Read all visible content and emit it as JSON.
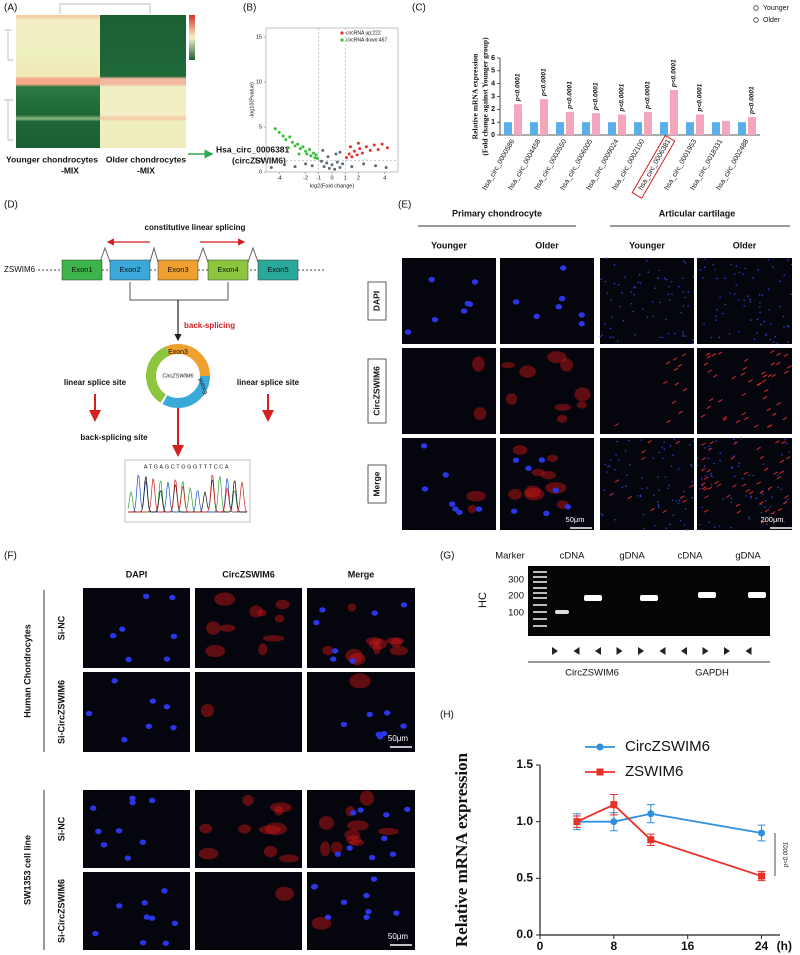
{
  "figure": {
    "A": {
      "label": "(A)",
      "column_labels": [
        [
          "Younger chondrocytes",
          "-MIX"
        ],
        [
          "Older chondrocytes",
          "-MIX"
        ]
      ],
      "annotation": [
        "Hsa_circ_0006381",
        "(circZSWIM6)"
      ]
    },
    "D": {
      "label": "(D)",
      "gene": "ZSWIM6",
      "exons": [
        "Exon1",
        "Exon2",
        "Exon3",
        "Exon4",
        "Exon5"
      ],
      "linear": "constitutive linear splicing",
      "back": "back-splicing",
      "circle": "CircZSWIM6",
      "circle_exons": [
        "Exon3",
        "Exon4"
      ],
      "left_site": "linear splice site",
      "right_site": "linear splice site",
      "bs_site": "back-splicing site",
      "sequence": "ATGAGCTGGGTTTCCA"
    },
    "E": {
      "label": "(E)",
      "groups": [
        "Primary chondrocyte",
        "Articular cartilage"
      ],
      "columns": [
        "Younger",
        "Older",
        "Younger",
        "Older"
      ],
      "rows": [
        "DAPI",
        "CircZSWIM6",
        "Merge"
      ],
      "scales": [
        "50μm",
        "200μm"
      ]
    },
    "F": {
      "label": "(F)",
      "columns": [
        "DAPI",
        "CircZSWIM6",
        "Merge"
      ],
      "groups": [
        "Human Chondrocytes",
        "SW1353 cell line"
      ],
      "rows": [
        "Si-NC",
        "Si-CircZSWIM6",
        "Si-NC",
        "Si-CircZSWIM6"
      ],
      "scales": [
        "50μm",
        "50μm"
      ]
    },
    "G": {
      "label": "(G)",
      "headers": [
        "Marker",
        "cDNA",
        "gDNA",
        "cDNA",
        "gDNA"
      ],
      "sizes": [
        "300",
        "200",
        "100"
      ],
      "sample": "HC",
      "genes": [
        "CircZSWIM6",
        "GAPDH"
      ]
    }
  },
  "chart_data": [
    {
      "type": "scatter",
      "panel": "(B)",
      "xlabel": "log2(Fold change)",
      "ylabel": "-log10(Pvalue)",
      "xlim": [
        -5,
        5
      ],
      "ylim": [
        0,
        16
      ],
      "xticks": [
        -4,
        -2,
        -1,
        0,
        1,
        2,
        4
      ],
      "yticks": [
        0,
        1.3,
        5,
        10,
        15
      ],
      "cutoffs": {
        "x": [
          -1,
          1
        ],
        "y": [
          1.3
        ]
      },
      "series": [
        {
          "name": "circRNA up:222",
          "color": "#e8302a",
          "x": [
            1.1,
            1.3,
            1.5,
            1.7,
            1.9,
            2.1,
            2.3,
            2.6,
            2.9,
            3.2,
            3.5,
            3.8,
            4.2,
            1.4,
            2.0
          ],
          "values": [
            1.6,
            2.0,
            1.7,
            2.3,
            1.9,
            2.6,
            2.1,
            2.8,
            2.4,
            3.0,
            2.5,
            3.1,
            2.7,
            2.8,
            3.2
          ]
        },
        {
          "name": "circRNA down:467",
          "color": "#3bbf3b",
          "x": [
            -4.3,
            -4.0,
            -3.7,
            -3.5,
            -3.2,
            -3.0,
            -2.8,
            -2.6,
            -2.4,
            -2.2,
            -2.0,
            -1.9,
            -1.7,
            -1.6,
            -1.4,
            -1.3,
            -1.2,
            -1.1,
            -2.5,
            -3.3
          ],
          "values": [
            4.8,
            4.4,
            4.0,
            3.6,
            3.9,
            3.3,
            2.9,
            3.1,
            2.6,
            2.8,
            2.3,
            2.0,
            2.5,
            1.8,
            2.1,
            1.6,
            1.9,
            1.5,
            2.0,
            2.7
          ]
        },
        {
          "color": "#5f6b78",
          "x": [
            -4.6,
            -3.6,
            -2.8,
            -2.0,
            -1.5,
            -0.8,
            -0.6,
            -0.4,
            -0.2,
            0,
            0.2,
            0.4,
            0.6,
            0.8,
            1.5,
            2.4,
            3.3,
            4.1,
            -0.3,
            0.3,
            -0.7,
            0.6
          ],
          "values": [
            0.5,
            0.8,
            0.6,
            0.9,
            0.7,
            1.2,
            0.6,
            1.0,
            0.4,
            0.8,
            0.3,
            1.1,
            0.5,
            0.9,
            0.6,
            0.9,
            0.7,
            0.5,
            1.7,
            2.0,
            2.4,
            2.2
          ]
        }
      ]
    },
    {
      "type": "bar",
      "panel": "(C)",
      "ylabel": [
        "Relative mRNA expression",
        "(Fold change against Younger group)"
      ],
      "categories": [
        "hsa_circ_0000586",
        "hsa_circ_0004458",
        "hsa_circ_0003550",
        "hsa_circ_0006005",
        "hsa_circ_0009024",
        "hsa_circ_0002100",
        "hsa_circ_0006381",
        "hsa_circ_0001953",
        "hsa_circ_0018331",
        "hsa_circ_0002488"
      ],
      "series": [
        {
          "name": "Younger",
          "color": "#5aaeea",
          "values": [
            1,
            1,
            1,
            1,
            1,
            1,
            1,
            1,
            1,
            1
          ]
        },
        {
          "name": "Older",
          "color": "#f4a6bd",
          "values": [
            2.4,
            2.8,
            1.8,
            1.7,
            1.6,
            1.8,
            3.5,
            1.6,
            1.1,
            1.4
          ]
        }
      ],
      "annotations": [
        "p<0.0001",
        "p<0.0001",
        "p<0.0001",
        "p<0.0001",
        "p<0.0001",
        "p<0.0001",
        "p<0.0001",
        "p<0.0001",
        null,
        "p<0.0001"
      ],
      "highlight": 6,
      "ylim": [
        0,
        6
      ],
      "yticks": [
        0,
        1,
        2,
        3,
        4,
        5,
        6
      ]
    },
    {
      "type": "line",
      "panel": "(H)",
      "ylabel": "Relative  mRNA expression",
      "xunit": "(h)",
      "x": [
        4,
        8,
        12,
        24
      ],
      "xlim": [
        0,
        26
      ],
      "xticks": [
        0,
        8,
        16,
        24
      ],
      "ylim": [
        0,
        1.5
      ],
      "yticks": [
        {
          "value": 0,
          "label": "0.0"
        },
        {
          "value": 0.5,
          "label": "0.5"
        },
        {
          "value": 1,
          "label": "1.0"
        },
        {
          "value": 1.5,
          "label": "1.5"
        }
      ],
      "series": [
        {
          "name": "CircZSWIM6",
          "color": "#2f8fe0",
          "marker": "circle",
          "values": [
            1.0,
            1.0,
            1.07,
            0.9
          ],
          "errors": [
            0.07,
            0.08,
            0.08,
            0.07
          ]
        },
        {
          "name": "ZSWIM6",
          "color": "#e8302a",
          "marker": "square",
          "values": [
            1.0,
            1.15,
            0.84,
            0.52
          ],
          "errors": [
            0.05,
            0.09,
            0.05,
            0.04
          ]
        }
      ],
      "annotation": "p<0.0001"
    }
  ]
}
